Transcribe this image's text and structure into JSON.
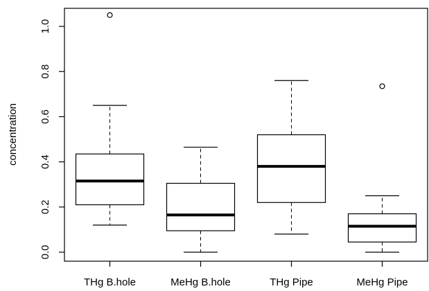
{
  "chart_data": {
    "type": "boxplot",
    "title": "",
    "xlabel": "",
    "ylabel": "concentration",
    "ylim": [
      -0.04,
      1.08
    ],
    "yticks": [
      0.0,
      0.2,
      0.4,
      0.6,
      0.8,
      1.0
    ],
    "ytick_labels": [
      "0.0",
      "0.2",
      "0.4",
      "0.6",
      "0.8",
      "1.0"
    ],
    "categories": [
      "THg B.hole",
      "MeHg B.hole",
      "THg Pipe",
      "MeHg Pipe"
    ],
    "boxes": [
      {
        "category": "THg B.hole",
        "whisker_low": 0.12,
        "q1": 0.21,
        "median": 0.315,
        "q3": 0.435,
        "whisker_high": 0.65,
        "outliers": [
          1.05
        ]
      },
      {
        "category": "MeHg B.hole",
        "whisker_low": 0.0,
        "q1": 0.095,
        "median": 0.165,
        "q3": 0.305,
        "whisker_high": 0.465,
        "outliers": []
      },
      {
        "category": "THg Pipe",
        "whisker_low": 0.08,
        "q1": 0.22,
        "median": 0.38,
        "q3": 0.52,
        "whisker_high": 0.76,
        "outliers": []
      },
      {
        "category": "MeHg Pipe",
        "whisker_low": 0.0,
        "q1": 0.045,
        "median": 0.115,
        "q3": 0.17,
        "whisker_high": 0.25,
        "outliers": [
          0.735
        ]
      }
    ],
    "grid": false,
    "legend": "none"
  }
}
